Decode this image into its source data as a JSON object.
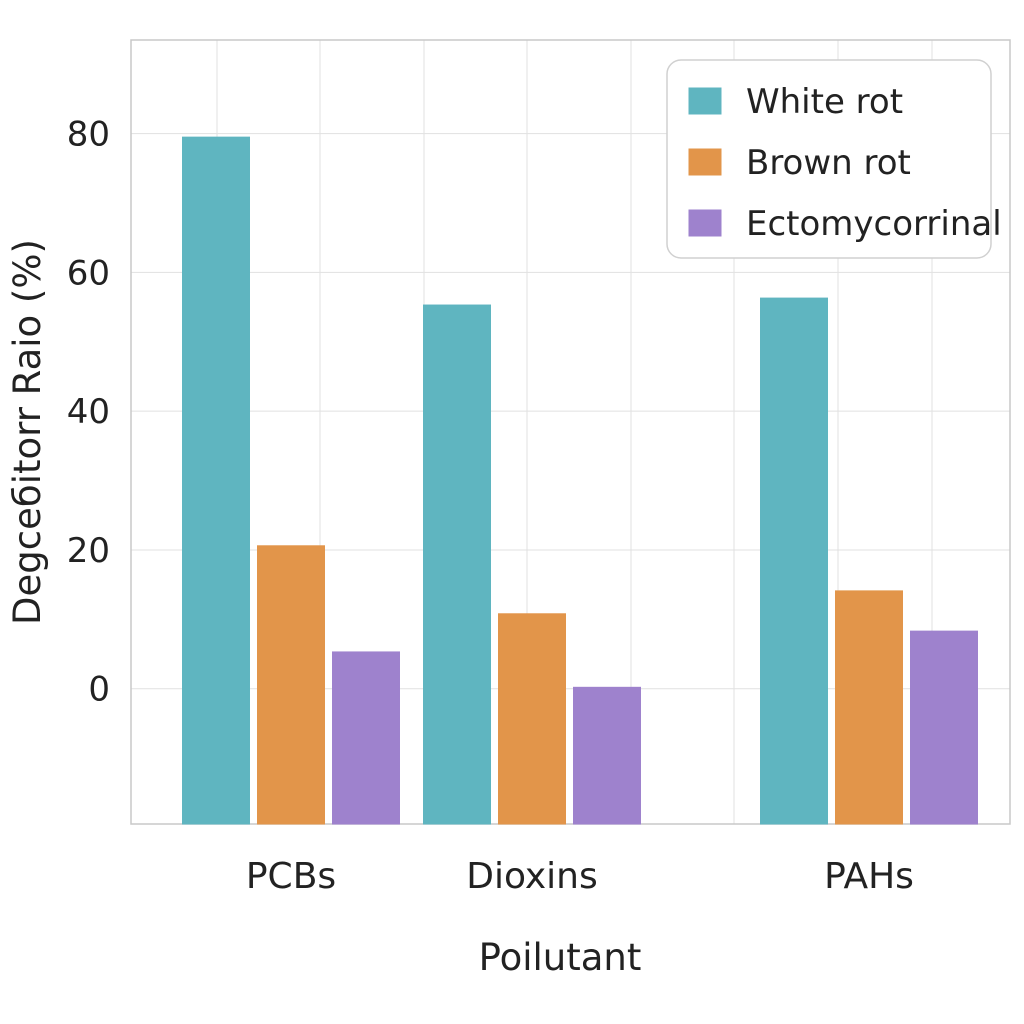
{
  "chart_data": {
    "type": "bar",
    "title": "",
    "xlabel": "Poilutant",
    "ylabel": "Degceбitorr Raio (%)",
    "categories": [
      "PCBs",
      "Dioxins",
      "PAHs"
    ],
    "series": [
      {
        "name": "White rot",
        "values": [
          79.5,
          55.3,
          56.3
        ],
        "color": "#5fb5c0"
      },
      {
        "name": "Brown rot",
        "values": [
          20.6,
          10.8,
          14.1
        ],
        "color": "#e2954a"
      },
      {
        "name": "Ectomycorrinal",
        "values": [
          5.3,
          0.2,
          8.3
        ],
        "color": "#9e82cd"
      }
    ],
    "ylim": [
      -19.5,
      93.5
    ],
    "yticks": [
      0,
      20,
      40,
      60,
      80
    ],
    "grid": true,
    "legend": "top-right",
    "colors": {
      "grid": "#e1e1e1",
      "axis": "#c8c8c8",
      "text": "#222222",
      "legend_border": "#d0d0d0"
    }
  }
}
